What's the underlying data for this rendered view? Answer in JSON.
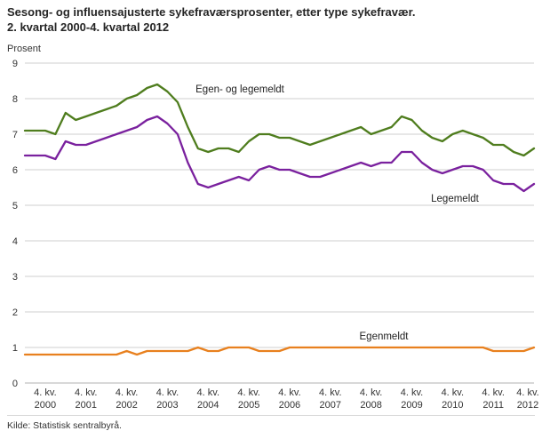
{
  "page": {
    "title_line1": "Sesong- og influensajusterte sykefraværsprosenter, etter type sykefravær.",
    "title_line2": "2. kvartal 2000-4. kvartal 2012",
    "y_axis_title": "Prosent",
    "source": "Kilde: Statistisk sentralbyrå."
  },
  "chart_data": {
    "type": "line",
    "title": "Sesong- og influensajusterte sykefraværsprosenter, etter type sykefravær. 2. kvartal 2000-4. kvartal 2012",
    "xlabel": "",
    "ylabel": "Prosent",
    "ylim": [
      0,
      9
    ],
    "grid": true,
    "legend_position": "inline-labels",
    "x_range": "2. kvartal 2000 til 4. kvartal 2012, kvartalsvis (51 observasjoner)",
    "x_tick_prefix": "4. kv.",
    "x_tick_years": [
      "2000",
      "2001",
      "2002",
      "2003",
      "2004",
      "2005",
      "2006",
      "2007",
      "2008",
      "2009",
      "2010",
      "2011",
      "2012"
    ],
    "x_tick_first_index": 2,
    "x_tick_every": 4,
    "series": [
      {
        "name": "Egen- og legemeldt",
        "color": "#4f7d1e",
        "values": [
          7.1,
          7.1,
          7.1,
          7.0,
          7.6,
          7.4,
          7.5,
          7.6,
          7.7,
          7.8,
          8.0,
          8.1,
          8.3,
          8.4,
          8.2,
          7.9,
          7.2,
          6.6,
          6.5,
          6.6,
          6.6,
          6.5,
          6.8,
          7.0,
          7.0,
          6.9,
          6.9,
          6.8,
          6.7,
          6.8,
          6.9,
          7.0,
          7.1,
          7.2,
          7.0,
          7.1,
          7.2,
          7.5,
          7.4,
          7.1,
          6.9,
          6.8,
          7.0,
          7.1,
          7.0,
          6.9,
          6.7,
          6.7,
          6.5,
          6.4,
          6.6
        ]
      },
      {
        "name": "Legemeldt",
        "color": "#7a219e",
        "values": [
          6.4,
          6.4,
          6.4,
          6.3,
          6.8,
          6.7,
          6.7,
          6.8,
          6.9,
          7.0,
          7.1,
          7.2,
          7.4,
          7.5,
          7.3,
          7.0,
          6.2,
          5.6,
          5.5,
          5.6,
          5.7,
          5.8,
          5.7,
          6.0,
          6.1,
          6.0,
          6.0,
          5.9,
          5.8,
          5.8,
          5.9,
          6.0,
          6.1,
          6.2,
          6.1,
          6.2,
          6.2,
          6.5,
          6.5,
          6.2,
          6.0,
          5.9,
          6.0,
          6.1,
          6.1,
          6.0,
          5.7,
          5.6,
          5.6,
          5.4,
          5.6
        ]
      },
      {
        "name": "Egenmeldt",
        "color": "#e8801e",
        "values": [
          0.8,
          0.8,
          0.8,
          0.8,
          0.8,
          0.8,
          0.8,
          0.8,
          0.8,
          0.8,
          0.9,
          0.8,
          0.9,
          0.9,
          0.9,
          0.9,
          0.9,
          1.0,
          0.9,
          0.9,
          1.0,
          1.0,
          1.0,
          0.9,
          0.9,
          0.9,
          1.0,
          1.0,
          1.0,
          1.0,
          1.0,
          1.0,
          1.0,
          1.0,
          1.0,
          1.0,
          1.0,
          1.0,
          1.0,
          1.0,
          1.0,
          1.0,
          1.0,
          1.0,
          1.0,
          1.0,
          0.9,
          0.9,
          0.9,
          0.9,
          1.0
        ]
      }
    ],
    "source": "Kilde: Statistisk sentralbyrå."
  }
}
